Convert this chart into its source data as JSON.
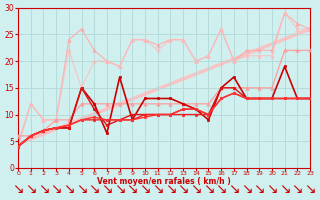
{
  "xlabel": "Vent moyen/en rafales ( km/h )",
  "xlim": [
    0,
    23
  ],
  "ylim": [
    0,
    30
  ],
  "yticks": [
    0,
    5,
    10,
    15,
    20,
    25,
    30
  ],
  "xticks": [
    0,
    1,
    2,
    3,
    4,
    5,
    6,
    7,
    8,
    9,
    10,
    11,
    12,
    13,
    14,
    15,
    16,
    17,
    18,
    19,
    20,
    21,
    22,
    23
  ],
  "bg_color": "#d0f0f0",
  "grid_color": "#b0d8d8",
  "lines": [
    {
      "x": [
        0,
        23
      ],
      "y": [
        4.5,
        26
      ],
      "color": "#ffbbbb",
      "lw": 2.5,
      "marker": null,
      "ms": 0,
      "alpha": 0.85,
      "zorder": 1
    },
    {
      "x": [
        0,
        1,
        2,
        3,
        4,
        5,
        6,
        7,
        8,
        9,
        10,
        11,
        12,
        13,
        14,
        15,
        16,
        17,
        18,
        19,
        20,
        21,
        22,
        23
      ],
      "y": [
        4.5,
        12,
        9,
        9,
        24,
        26,
        22,
        20,
        19,
        24,
        24,
        23,
        24,
        24,
        20,
        21,
        26,
        20,
        22,
        22,
        22,
        29,
        27,
        26
      ],
      "color": "#ffaaaa",
      "lw": 0.9,
      "marker": "^",
      "ms": 2.5,
      "alpha": 0.85,
      "zorder": 2
    },
    {
      "x": [
        0,
        1,
        2,
        3,
        4,
        5,
        6,
        7,
        8,
        9,
        10,
        11,
        12,
        13,
        14,
        15,
        16,
        17,
        18,
        19,
        20,
        21,
        22,
        23
      ],
      "y": [
        4,
        12,
        9,
        9,
        22,
        15,
        20,
        20,
        19,
        24,
        24,
        22,
        24,
        24,
        20,
        21,
        26,
        20,
        21,
        21,
        21,
        29,
        26,
        26
      ],
      "color": "#ffbbbb",
      "lw": 0.9,
      "marker": "^",
      "ms": 2.5,
      "alpha": 0.75,
      "zorder": 2
    },
    {
      "x": [
        0,
        1,
        2,
        3,
        4,
        5,
        6,
        7,
        8,
        9,
        10,
        11,
        12,
        13,
        14,
        15,
        16,
        17,
        18,
        19,
        20,
        21,
        22,
        23
      ],
      "y": [
        6,
        6,
        7,
        9,
        9,
        12,
        12,
        12,
        12,
        12,
        12,
        12,
        12,
        12,
        12,
        12,
        15,
        15,
        15,
        15,
        15,
        22,
        22,
        22
      ],
      "color": "#ff9999",
      "lw": 1.0,
      "marker": "^",
      "ms": 2.5,
      "alpha": 0.85,
      "zorder": 3
    },
    {
      "x": [
        0,
        1,
        2,
        3,
        4,
        5,
        6,
        7,
        8,
        9,
        10,
        11,
        12,
        13,
        14,
        15,
        16,
        17,
        18,
        19,
        20,
        21,
        22,
        23
      ],
      "y": [
        4,
        6,
        7,
        7.5,
        7.5,
        15,
        12,
        6.5,
        17,
        9,
        13,
        13,
        13,
        12,
        11,
        9,
        15,
        17,
        13,
        13,
        13,
        19,
        13,
        13
      ],
      "color": "#cc0000",
      "lw": 1.2,
      "marker": "s",
      "ms": 2.0,
      "alpha": 1.0,
      "zorder": 5
    },
    {
      "x": [
        0,
        1,
        2,
        3,
        4,
        5,
        6,
        7,
        8,
        9,
        10,
        11,
        12,
        13,
        14,
        15,
        16,
        17,
        18,
        19,
        20,
        21,
        22,
        23
      ],
      "y": [
        4,
        6,
        7,
        7.5,
        7.5,
        15,
        11,
        8,
        9,
        10,
        10,
        10,
        10,
        11,
        11,
        10,
        15,
        15,
        13,
        13,
        13,
        13,
        13,
        13
      ],
      "color": "#dd1111",
      "lw": 1.0,
      "marker": "s",
      "ms": 1.8,
      "alpha": 1.0,
      "zorder": 5
    },
    {
      "x": [
        0,
        1,
        2,
        3,
        4,
        5,
        6,
        7,
        8,
        9,
        10,
        11,
        12,
        13,
        14,
        15,
        16,
        17,
        18,
        19,
        20,
        21,
        22,
        23
      ],
      "y": [
        4,
        6,
        7,
        7.5,
        8,
        9,
        9,
        9,
        9,
        9,
        10,
        10,
        10,
        10,
        10,
        10,
        13,
        14,
        13,
        13,
        13,
        13,
        13,
        13
      ],
      "color": "#ee2222",
      "lw": 1.0,
      "marker": "s",
      "ms": 1.8,
      "alpha": 1.0,
      "zorder": 5
    },
    {
      "x": [
        0,
        1,
        2,
        3,
        4,
        5,
        6,
        7,
        8,
        9,
        10,
        11,
        12,
        13,
        14,
        15,
        16,
        17,
        18,
        19,
        20,
        21,
        22,
        23
      ],
      "y": [
        4,
        6,
        7,
        7.5,
        8,
        9,
        9.5,
        9,
        9,
        9,
        9.5,
        10,
        10,
        11,
        11,
        10,
        13,
        14,
        13,
        13,
        13,
        13,
        13,
        13
      ],
      "color": "#ff3333",
      "lw": 1.0,
      "marker": "s",
      "ms": 1.8,
      "alpha": 1.0,
      "zorder": 5
    }
  ]
}
